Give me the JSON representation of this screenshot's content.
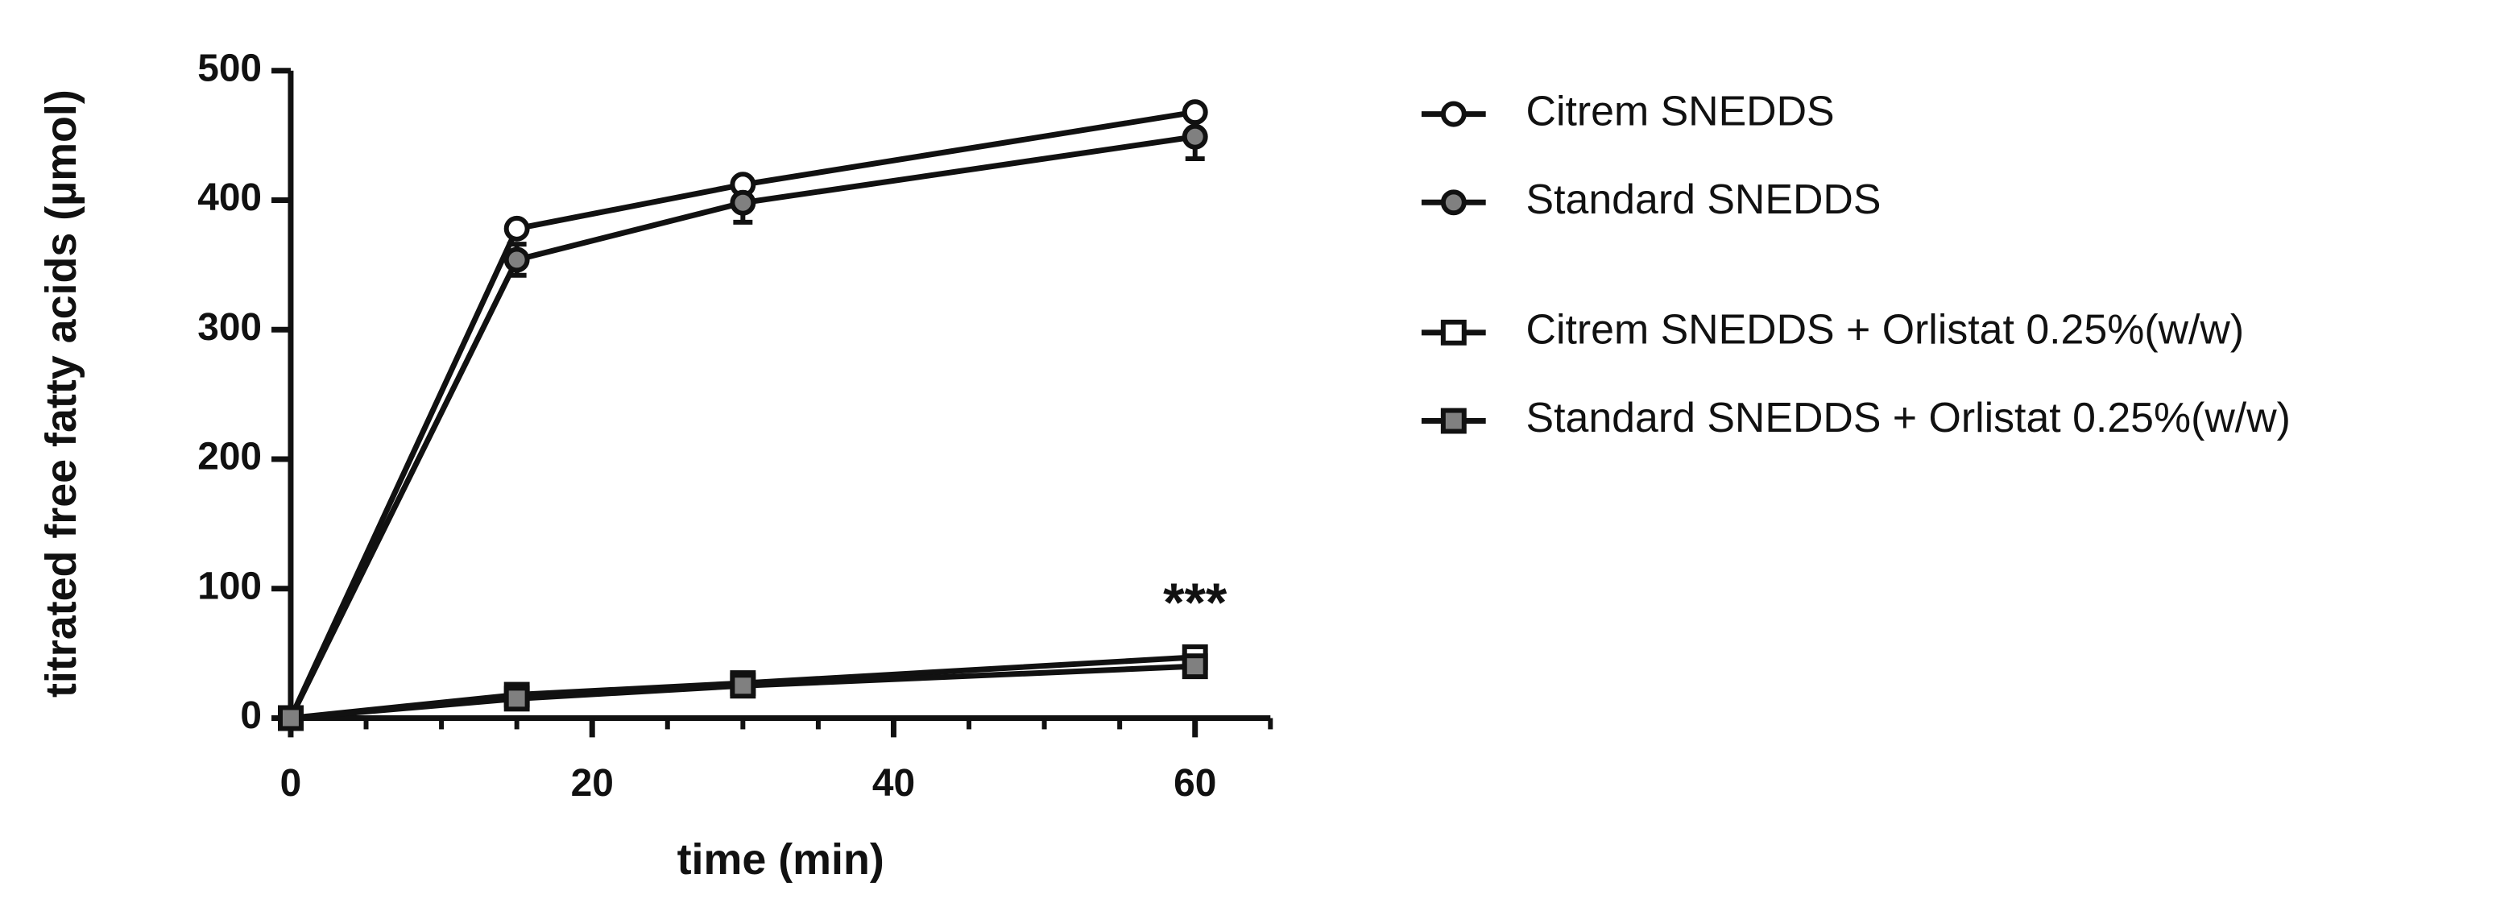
{
  "chart_data": {
    "type": "line",
    "x_label": "time (min)",
    "y_label": "titrated free fatty acids (µmol)",
    "x": [
      0,
      15,
      30,
      60
    ],
    "series": [
      {
        "name": "Citrem SNEDDS",
        "color": "#ffffff",
        "marker": "circle",
        "values": [
          0,
          378,
          412,
          468
        ]
      },
      {
        "name": "Standard SNEDDS",
        "color": "#808080",
        "marker": "circle",
        "values": [
          0,
          354,
          398,
          449
        ],
        "errors": [
          0,
          12,
          15,
          17
        ]
      },
      {
        "name": "Citrem SNEDDS + Orlistat 0.25%(w/w)",
        "color": "#ffffff",
        "marker": "square",
        "values": [
          0,
          18,
          27,
          47
        ]
      },
      {
        "name": "Standard SNEDDS + Orlistat 0.25%(w/w)",
        "color": "#808080",
        "marker": "square",
        "values": [
          0,
          15,
          25,
          40
        ]
      }
    ],
    "line_color": "#111111",
    "xlim": [
      0,
      65
    ],
    "xticks": [
      0,
      20,
      40,
      60
    ],
    "xminorticks": [
      5,
      10,
      15,
      25,
      30,
      35,
      45,
      50,
      55,
      65
    ],
    "ylim": [
      0,
      500
    ],
    "yticks": [
      0,
      100,
      200,
      300,
      400,
      500
    ],
    "annotation": {
      "text": "***",
      "x": 60,
      "y": 86
    },
    "legend": "right"
  }
}
